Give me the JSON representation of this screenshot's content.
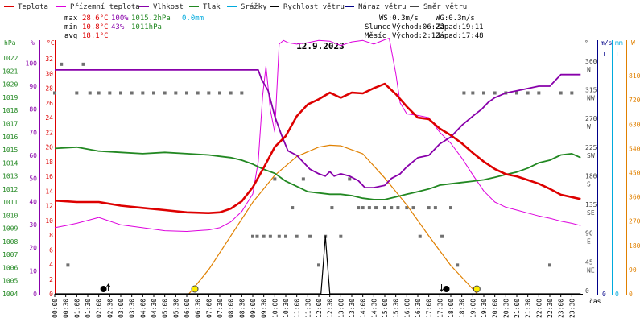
{
  "chart_data": {
    "type": "line",
    "title": "12.9.2023",
    "legend": [
      {
        "name": "Teplota",
        "color": "#dd0000"
      },
      {
        "name": "Přízemní teplota",
        "color": "#dd00dd"
      },
      {
        "name": "Vlhkost",
        "color": "#8800aa"
      },
      {
        "name": "Tlak",
        "color": "#228822"
      },
      {
        "name": "Srážky",
        "color": "#00aadd"
      },
      {
        "name": "Rychlost větru",
        "color": "#000000"
      },
      {
        "name": "Náraz větru",
        "color": "#000088"
      },
      {
        "name": "Směr větru",
        "color": "#444444"
      }
    ],
    "stats": {
      "max_label": "max",
      "max_temp": "28.6°C",
      "max_hum": "100%",
      "max_press": "1015.2hPa",
      "max_rain": "0.0mm",
      "min_label": "min",
      "min_temp": "10.8°C",
      "min_hum": "43%",
      "min_press": "1011hPa",
      "avg_label": "avg",
      "avg_temp": "18.1°C",
      "ws": "WS:0.3m/s",
      "wg": "WG:0.3m/s",
      "sun_label": "Slunce",
      "sunrise": "Východ:06:22",
      "sunset": "Západ:19:11",
      "moon_label": "Měsíc",
      "moonrise": "Východ:2:13",
      "moonset": "Západ:17:48"
    },
    "axis_units": {
      "hpa": "hPa",
      "pct": "%",
      "degc": "°C",
      "deg": "°",
      "ms": "m/s",
      "mm": "mm",
      "w": "W",
      "time": "čas"
    },
    "x_tick_labels": [
      "00:00",
      "00:30",
      "01:00",
      "01:30",
      "02:00",
      "02:30",
      "03:00",
      "03:30",
      "04:00",
      "04:30",
      "05:00",
      "05:30",
      "06:00",
      "06:30",
      "07:00",
      "07:30",
      "08:00",
      "08:30",
      "09:00",
      "09:30",
      "10:00",
      "10:30",
      "11:00",
      "11:30",
      "12:00",
      "12:30",
      "13:00",
      "13:30",
      "14:00",
      "14:30",
      "15:00",
      "15:30",
      "16:00",
      "16:30",
      "17:00",
      "17:30",
      "18:00",
      "18:30",
      "19:00",
      "19:30",
      "20:00",
      "20:30",
      "21:00",
      "21:30",
      "22:00",
      "22:30",
      "23:00",
      "23:30"
    ],
    "hpa_ticks": [
      "1022",
      "1021",
      "1020",
      "1019",
      "1018",
      "1017",
      "1016",
      "1015",
      "1014",
      "1013",
      "1012",
      "1011",
      "1010",
      "1009",
      "1008",
      "1007",
      "1006",
      "1005",
      "1004"
    ],
    "pct_ticks": [
      "100",
      "90",
      "80",
      "70",
      "60",
      "50",
      "40",
      "30",
      "20",
      "10",
      "0"
    ],
    "degc_ticks": [
      "32",
      "30",
      "28",
      "26",
      "24",
      "22",
      "20",
      "18",
      "16",
      "14",
      "12",
      "10",
      "8",
      "6",
      "4",
      "2",
      "0"
    ],
    "dir_ticks": [
      {
        "deg": "360",
        "lbl": "N"
      },
      {
        "deg": "315",
        "lbl": "NW"
      },
      {
        "deg": "270",
        "lbl": "W"
      },
      {
        "deg": "225",
        "lbl": "SW"
      },
      {
        "deg": "180",
        "lbl": "S"
      },
      {
        "deg": "135",
        "lbl": "SE"
      },
      {
        "deg": "90",
        "lbl": "E"
      },
      {
        "deg": "45",
        "lbl": "NE"
      },
      {
        "deg": "0",
        "lbl": ""
      }
    ],
    "ms_ticks": [
      "1",
      "0"
    ],
    "mm_ticks": [
      "1",
      "0"
    ],
    "w_ticks": [
      "810",
      "720",
      "630",
      "540",
      "450",
      "360",
      "270",
      "180",
      "90",
      "0"
    ],
    "series": {
      "temperature": {
        "x": [
          0,
          1,
          2,
          3,
          4,
          5,
          6,
          7,
          7.5,
          8,
          8.5,
          9,
          9.5,
          10,
          10.5,
          11,
          11.5,
          12,
          12.5,
          13,
          13.5,
          14,
          14.5,
          15,
          15.5,
          16,
          16.5,
          17,
          17.5,
          18,
          18.5,
          19,
          19.5,
          20,
          20.5,
          21,
          21.5,
          22,
          22.5,
          23,
          23.9
        ],
        "y": [
          12.7,
          12.5,
          12.5,
          12.0,
          11.7,
          11.4,
          11.1,
          11.0,
          11.1,
          11.6,
          12.6,
          14.5,
          17.2,
          20.0,
          21.5,
          24.2,
          25.8,
          26.5,
          27.4,
          26.7,
          27.4,
          27.3,
          28.0,
          28.6,
          27.2,
          25.5,
          24.0,
          23.8,
          22.5,
          21.6,
          20.5,
          19.2,
          18.0,
          17.0,
          16.3,
          16.0,
          15.5,
          15.0,
          14.3,
          13.5,
          12.9
        ]
      },
      "humidity": {
        "x": [
          0,
          9.25,
          9.4,
          9.7,
          10,
          10.3,
          10.6,
          11,
          11.3,
          11.6,
          12,
          12.3,
          12.5,
          12.7,
          13,
          13.4,
          13.8,
          14.1,
          14.5,
          15,
          15.3,
          15.7,
          16,
          16.5,
          17,
          17.5,
          18,
          18.5,
          19,
          19.4,
          19.7,
          20,
          20.5,
          21,
          21.5,
          22,
          22.5,
          23,
          23.9
        ],
        "y": [
          97,
          97,
          93,
          88,
          77,
          69,
          62,
          60,
          57,
          54,
          52,
          51,
          53,
          51,
          52,
          51,
          49,
          46,
          46,
          47,
          50,
          52,
          55,
          59,
          60,
          65,
          68,
          73,
          77,
          80,
          83,
          85,
          87,
          88,
          89,
          90,
          90,
          95,
          95
        ]
      },
      "ground_temperature": {
        "x": [
          0,
          0.5,
          1,
          2,
          3,
          4,
          5,
          6,
          7,
          7.5,
          8,
          8.5,
          9,
          9.25,
          9.45,
          9.6,
          9.8,
          10,
          10.2,
          10.4,
          10.6,
          11,
          11.5,
          12,
          12.5,
          13,
          13.5,
          14,
          14.5,
          15,
          15.2,
          15.5,
          15.7,
          16,
          16.5,
          17,
          17.5,
          18,
          18.5,
          19,
          19.5,
          20,
          20.5,
          21,
          21.5,
          22,
          22.5,
          23,
          23.5,
          23.9
        ],
        "y": [
          9,
          9.3,
          9.6,
          10.4,
          9.4,
          9.0,
          8.6,
          8.5,
          8.7,
          9.0,
          9.8,
          11.2,
          13.6,
          18,
          27,
          31,
          25,
          22,
          34,
          34.5,
          34.2,
          34,
          34.2,
          34.5,
          34.4,
          33.8,
          34.3,
          34.5,
          34.0,
          34.6,
          34.8,
          30,
          26,
          24.5,
          24.3,
          24.0,
          22,
          20.5,
          18.5,
          16.2,
          14,
          12.5,
          11.8,
          11.4,
          11.0,
          10.6,
          10.3,
          9.9,
          9.6,
          9.3
        ]
      },
      "pressure": {
        "x": [
          0,
          1,
          2,
          3,
          4,
          5,
          6,
          7,
          7.5,
          8,
          8.5,
          9,
          9.5,
          10,
          10.5,
          11,
          11.5,
          12,
          12.5,
          13,
          13.5,
          14,
          14.5,
          15,
          15.5,
          16,
          16.5,
          17,
          17.5,
          18,
          18.5,
          19,
          19.5,
          20,
          20.5,
          21,
          21.5,
          22,
          22.5,
          23,
          23.5,
          23.9
        ],
        "y": [
          1015.1,
          1015.2,
          1014.9,
          1014.8,
          1014.7,
          1014.8,
          1014.7,
          1014.6,
          1014.5,
          1014.4,
          1014.2,
          1013.9,
          1013.5,
          1013.2,
          1012.6,
          1012.2,
          1011.8,
          1011.7,
          1011.6,
          1011.6,
          1011.5,
          1011.3,
          1011.2,
          1011.2,
          1011.4,
          1011.6,
          1011.8,
          1012.0,
          1012.3,
          1012.4,
          1012.5,
          1012.6,
          1012.7,
          1012.9,
          1013.1,
          1013.3,
          1013.6,
          1014.0,
          1014.2,
          1014.6,
          1014.7,
          1014.4
        ]
      },
      "solar_radiation": {
        "x": [
          6.1,
          7,
          8,
          9,
          10,
          11,
          12,
          12.5,
          13,
          14,
          15,
          16,
          17,
          18,
          19,
          19.2
        ],
        "y": [
          0,
          90,
          215,
          340,
          440,
          510,
          545,
          552,
          550,
          520,
          430,
          330,
          215,
          105,
          18,
          0
        ]
      },
      "wind_speed": {
        "x": [
          0,
          12,
          12.1,
          12.2,
          12.3,
          12.4,
          12.5,
          23.9
        ],
        "y": [
          0,
          0,
          0,
          0.3,
          0.6,
          0.3,
          0,
          0
        ]
      },
      "wind_direction": {
        "x": [
          0,
          0.3,
          0.6,
          1,
          1.3,
          1.6,
          2,
          2.5,
          3,
          3.5,
          4,
          4.5,
          5,
          5.5,
          6,
          6.5,
          7,
          7.5,
          8,
          8.5,
          9,
          9.2,
          9.5,
          9.8,
          10,
          10.2,
          10.5,
          10.8,
          11,
          11.3,
          11.6,
          12,
          12.3,
          12.6,
          13,
          13.4,
          13.8,
          14,
          14.3,
          14.6,
          15,
          15.3,
          15.6,
          16,
          16.3,
          16.6,
          17,
          17.3,
          17.6,
          18,
          18.3,
          18.6,
          19,
          19.5,
          20,
          20.5,
          21,
          21.5,
          22,
          22.5,
          23,
          23.5
        ],
        "y": [
          315,
          360,
          45,
          315,
          360,
          315,
          315,
          315,
          315,
          315,
          315,
          315,
          315,
          315,
          315,
          315,
          315,
          315,
          315,
          315,
          90,
          90,
          90,
          90,
          180,
          90,
          90,
          135,
          90,
          180,
          90,
          45,
          90,
          135,
          90,
          180,
          135,
          135,
          135,
          135,
          135,
          135,
          135,
          135,
          135,
          90,
          135,
          135,
          90,
          135,
          45,
          315,
          315,
          315,
          315,
          315,
          315,
          315,
          315,
          45,
          315,
          315
        ]
      },
      "sun_moon_markers": {
        "moonrise": "2:13",
        "sunrise": "6:22",
        "moonset": "17:48",
        "sunset": "19:11"
      }
    },
    "axes": {
      "temp_ylim": [
        0,
        33
      ],
      "hum_ylim": [
        0,
        105
      ],
      "press_ylim": [
        1004,
        1022.5
      ],
      "dir_ylim": [
        0,
        380
      ],
      "solar_ylim": [
        0,
        900
      ],
      "x_range": [
        0,
        24
      ]
    }
  }
}
